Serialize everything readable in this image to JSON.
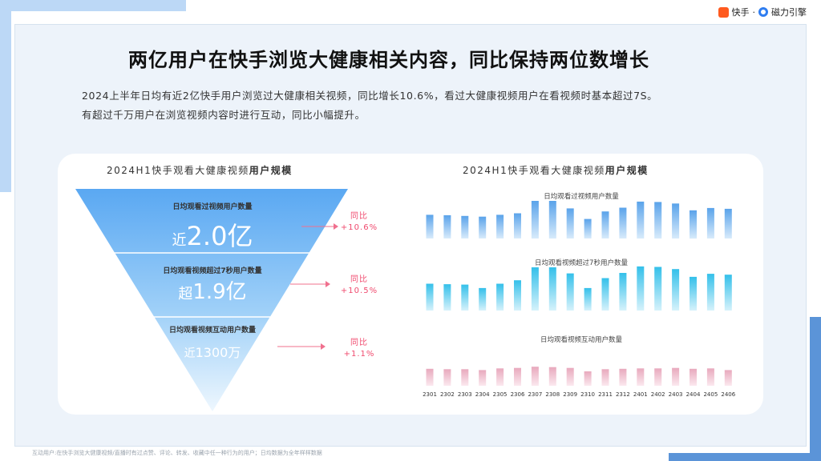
{
  "logo": {
    "kuaishou": "快手",
    "separator": "·",
    "cili": "磁力引擎"
  },
  "headline": "两亿用户在快手浏览大健康相关内容，同比保持两位数增长",
  "description": [
    "2024上半年日均有近2亿快手用户浏览过大健康相关视频，同比增长10.6%，看过大健康视频用户在看视频时基本超过7S。",
    "有超过千万用户在浏览视频内容时进行互动，同比小幅提升。"
  ],
  "left_panel": {
    "title_normal": "2024H1快手观看大健康视频",
    "title_bold": "用户规模",
    "tiers": [
      {
        "label": "日均观看过视频用户数量",
        "prefix": "近",
        "value": "2.0亿",
        "growth_label": "同比",
        "growth_value": "+10.6%"
      },
      {
        "label": "日均观看视频超过7秒用户数量",
        "prefix": "超",
        "value": "1.9亿",
        "growth_label": "同比",
        "growth_value": "+10.5%"
      },
      {
        "label": "日均观看视频互动用户数量",
        "prefix": "近",
        "value": "1300万",
        "growth_label": "同比",
        "growth_value": "+1.1%"
      }
    ]
  },
  "right_panel": {
    "title_normal": "2024H1快手观看大健康视频",
    "title_bold": "用户规模"
  },
  "chart_data": {
    "type": "bar",
    "categories": [
      "2301",
      "2302",
      "2303",
      "2304",
      "2305",
      "2306",
      "2307",
      "2308",
      "2309",
      "2310",
      "2311",
      "2312",
      "2401",
      "2402",
      "2403",
      "2404",
      "2405",
      "2406"
    ],
    "series": [
      {
        "name": "日均观看过视频用户数量",
        "values": [
          63,
          62,
          60,
          58,
          63,
          67,
          100,
          100,
          80,
          52,
          72,
          82,
          98,
          97,
          93,
          75,
          81,
          79
        ],
        "color_top": "#5aa3ea",
        "color_bottom": "#d8ebfb"
      },
      {
        "name": "日均观看视频超过7秒用户数量",
        "values": [
          62,
          61,
          60,
          52,
          62,
          70,
          100,
          100,
          86,
          52,
          75,
          87,
          102,
          101,
          96,
          78,
          85,
          83
        ],
        "color_top": "#34c0ea",
        "color_bottom": "#d6f2fb"
      },
      {
        "name": "日均观看视频互动用户数量",
        "values": [
          40,
          39,
          39,
          37,
          41,
          42,
          45,
          44,
          42,
          34,
          39,
          40,
          41,
          41,
          42,
          40,
          41,
          37
        ],
        "color_top": "#e8a9bd",
        "color_bottom": "#fbe9ef"
      }
    ]
  },
  "footnote": "互动用户:在快手浏览大健康视频/直播时有过点赞、评论、转发、收藏中任一种行为的用户；日均数据为全年样样数据"
}
